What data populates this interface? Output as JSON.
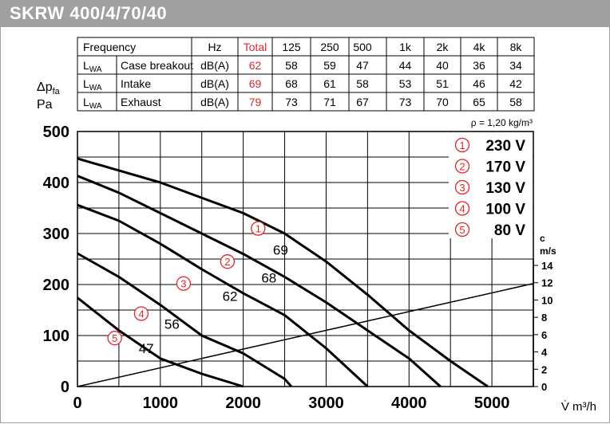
{
  "title": "SKRW 400/4/70/40",
  "colors": {
    "header_bg": "#a0a0a0",
    "accent_red": "#e4262b",
    "curve": "#000000"
  },
  "sound_table": {
    "header": [
      "Frequency",
      "Hz",
      "Total",
      "125",
      "250",
      "500",
      "1k",
      "2k",
      "4k",
      "8k"
    ],
    "rows": [
      {
        "lwa": "L",
        "lwa_sub": "WA",
        "label": "Case breakout",
        "unit": "dB(A)",
        "total": "62",
        "values": [
          "58",
          "59",
          "47",
          "44",
          "40",
          "36",
          "34"
        ]
      },
      {
        "lwa": "L",
        "lwa_sub": "WA",
        "label": "Intake",
        "unit": "dB(A)",
        "total": "69",
        "values": [
          "68",
          "61",
          "58",
          "53",
          "51",
          "46",
          "42"
        ]
      },
      {
        "lwa": "L",
        "lwa_sub": "WA",
        "label": "Exhaust",
        "unit": "dB(A)",
        "total": "79",
        "values": [
          "73",
          "71",
          "67",
          "73",
          "70",
          "65",
          "58"
        ]
      }
    ]
  },
  "chart_data": {
    "type": "line",
    "density_note": "ρ = 1,20 kg/m³",
    "ylabel_main": "Δp",
    "ylabel_sub": "fa",
    "ylabel_unit": "Pa",
    "xlabel": "V̇ m³/h",
    "xlim": [
      0,
      5500
    ],
    "ylim": [
      0,
      500
    ],
    "x_ticks": [
      "0",
      "1000",
      "2000",
      "3000",
      "4000",
      "5000"
    ],
    "y_ticks": [
      "0",
      "100",
      "200",
      "300",
      "400",
      "500"
    ],
    "grid": true,
    "right_axis": {
      "label": "c",
      "unit": "m/s",
      "ticks": [
        "0",
        "2",
        "4",
        "6",
        "8",
        "10",
        "12",
        "14"
      ]
    },
    "legend": [
      {
        "marker": "1",
        "label": "230 V"
      },
      {
        "marker": "2",
        "label": "170 V"
      },
      {
        "marker": "3",
        "label": "130 V"
      },
      {
        "marker": "4",
        "label": "100 V"
      },
      {
        "marker": "5",
        "label": "80 V"
      }
    ],
    "series": [
      {
        "marker": "1",
        "points": [
          [
            0,
            447
          ],
          [
            1000,
            400
          ],
          [
            2000,
            340
          ],
          [
            2500,
            300
          ],
          [
            3000,
            245
          ],
          [
            3500,
            180
          ],
          [
            4000,
            110
          ],
          [
            4500,
            50
          ],
          [
            4950,
            0
          ]
        ]
      },
      {
        "marker": "2",
        "points": [
          [
            0,
            413
          ],
          [
            500,
            380
          ],
          [
            1000,
            340
          ],
          [
            1500,
            300
          ],
          [
            2000,
            260
          ],
          [
            2500,
            215
          ],
          [
            3000,
            165
          ],
          [
            3500,
            110
          ],
          [
            4000,
            55
          ],
          [
            4380,
            0
          ]
        ]
      },
      {
        "marker": "3",
        "points": [
          [
            0,
            356
          ],
          [
            500,
            325
          ],
          [
            1000,
            280
          ],
          [
            1500,
            230
          ],
          [
            2000,
            183
          ],
          [
            2500,
            140
          ],
          [
            3000,
            75
          ],
          [
            3500,
            0
          ]
        ]
      },
      {
        "marker": "4",
        "points": [
          [
            0,
            261
          ],
          [
            500,
            215
          ],
          [
            1000,
            160
          ],
          [
            1500,
            100
          ],
          [
            2000,
            65
          ],
          [
            2500,
            15
          ],
          [
            2580,
            0
          ]
        ]
      },
      {
        "marker": "5",
        "points": [
          [
            0,
            174
          ],
          [
            500,
            110
          ],
          [
            1000,
            55
          ],
          [
            1500,
            25
          ],
          [
            2000,
            0
          ]
        ]
      }
    ],
    "system_line": {
      "points": [
        [
          0,
          0
        ],
        [
          5500,
          202
        ]
      ]
    },
    "sound_labels": [
      "69",
      "68",
      "62",
      "56",
      "47"
    ]
  }
}
